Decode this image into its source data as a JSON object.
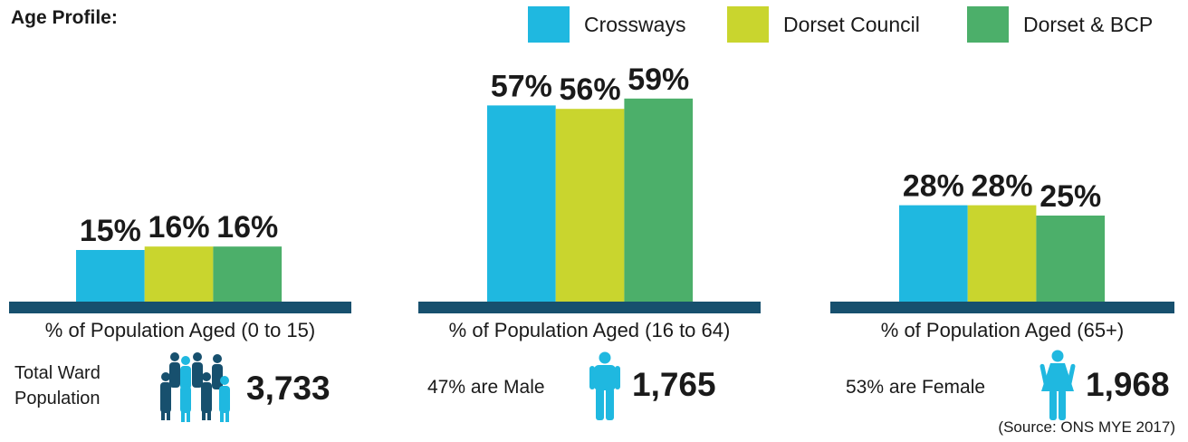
{
  "title": "Age Profile:",
  "colors": {
    "crossways": "#1fb8e0",
    "dorset_council": "#c9d52e",
    "dorset_bcp": "#4caf6a",
    "baseline": "#17506e",
    "icon_dark": "#17506e",
    "icon_light": "#1fb8e0"
  },
  "chart_data": [
    {
      "type": "bar",
      "xlabel": "% of Population Aged (0 to 15)",
      "categories": [
        "Crossways",
        "Dorset Council",
        "Dorset & BCP"
      ],
      "values": [
        15,
        16,
        16
      ],
      "value_labels": [
        "15%",
        "16%",
        "16%"
      ],
      "unit": "%"
    },
    {
      "type": "bar",
      "xlabel": "% of Population Aged (16 to 64)",
      "categories": [
        "Crossways",
        "Dorset Council",
        "Dorset & BCP"
      ],
      "values": [
        57,
        56,
        59
      ],
      "value_labels": [
        "57%",
        "56%",
        "59%"
      ],
      "unit": "%"
    },
    {
      "type": "bar",
      "xlabel": "% of Population Aged (65+)",
      "categories": [
        "Crossways",
        "Dorset Council",
        "Dorset & BCP"
      ],
      "values": [
        28,
        28,
        25
      ],
      "value_labels": [
        "28%",
        "28%",
        "25%"
      ],
      "unit": "%"
    }
  ],
  "legend": [
    "Crossways",
    "Dorset Council",
    "Dorset & BCP"
  ],
  "stats": {
    "total_label_line1": "Total Ward",
    "total_label_line2": "Population",
    "total_value": "3,733",
    "male_label": "47% are Male",
    "male_value": "1,765",
    "female_label": "53% are Female",
    "female_value": "1,968",
    "population_icon": "people-group-icon",
    "male_icon": "male-icon",
    "female_icon": "female-icon"
  },
  "source": "(Source: ONS MYE 2017)"
}
